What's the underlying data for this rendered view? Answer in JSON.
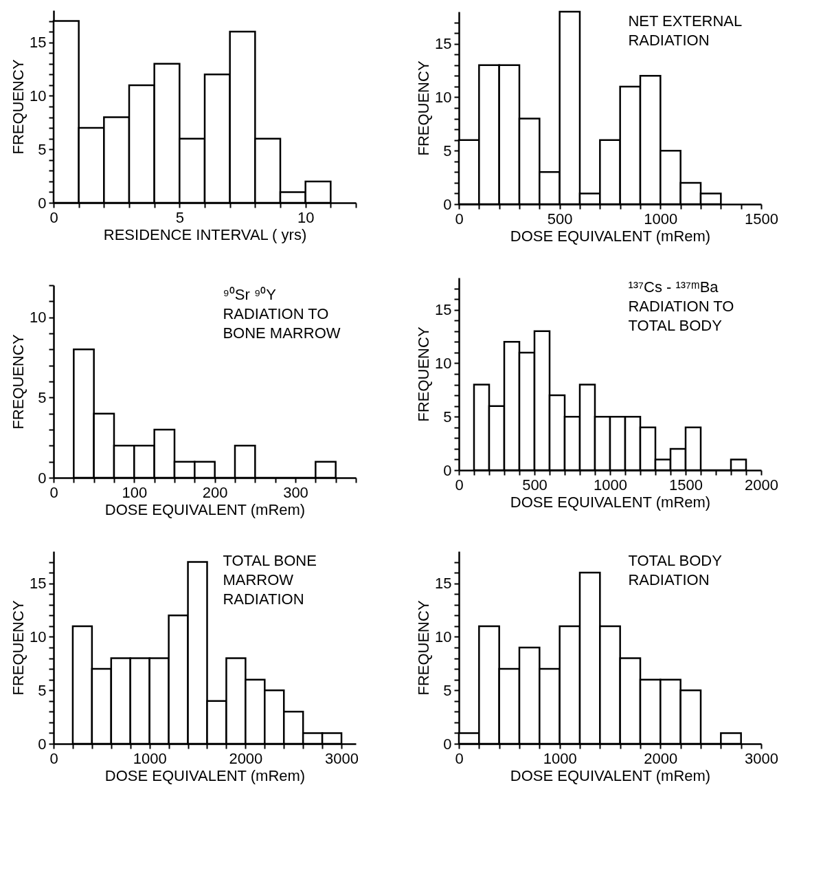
{
  "chart_data": [
    {
      "type": "histogram",
      "xlabel": "RESIDENCE INTERVAL ( yrs)",
      "ylabel": "FREQUENCY",
      "bins": [
        0,
        1,
        2,
        3,
        4,
        5,
        6,
        7,
        8,
        9,
        10,
        11
      ],
      "values": [
        17,
        7,
        8,
        11,
        13,
        6,
        12,
        16,
        6,
        1,
        2
      ],
      "xlim": [
        0,
        12
      ],
      "ylim": [
        0,
        18
      ],
      "xticks": [
        0,
        {
          "value": 1,
          "label": null
        },
        {
          "value": 2,
          "label": null
        },
        {
          "value": 3,
          "label": null
        },
        {
          "value": 4,
          "label": null
        },
        5,
        {
          "value": 6,
          "label": null
        },
        {
          "value": 7,
          "label": null
        },
        {
          "value": 8,
          "label": null
        },
        {
          "value": 9,
          "label": null
        },
        10,
        {
          "value": 11,
          "label": null
        },
        {
          "value": 12,
          "label": null
        }
      ],
      "yticks": [
        0,
        {
          "value": 1,
          "label": null
        },
        {
          "value": 2,
          "label": null
        },
        {
          "value": 3,
          "label": null
        },
        {
          "value": 4,
          "label": null
        },
        5,
        {
          "value": 6,
          "label": null
        },
        {
          "value": 7,
          "label": null
        },
        {
          "value": 8,
          "label": null
        },
        {
          "value": 9,
          "label": null
        },
        10,
        {
          "value": 11,
          "label": null
        },
        {
          "value": 12,
          "label": null
        },
        {
          "value": 13,
          "label": null
        },
        {
          "value": 14,
          "label": null
        },
        15,
        {
          "value": 16,
          "label": null
        },
        {
          "value": 17,
          "label": null
        }
      ]
    },
    {
      "type": "histogram",
      "xlabel": "DOSE EQUIVALENT (mRem)",
      "ylabel": "FREQUENCY",
      "annotations": [
        "NET EXTERNAL",
        "RADIATION"
      ],
      "bins": [
        0,
        100,
        200,
        300,
        400,
        500,
        600,
        700,
        800,
        900,
        1000,
        1100,
        1200,
        1300
      ],
      "values": [
        6,
        13,
        13,
        8,
        3,
        18,
        1,
        6,
        11,
        12,
        5,
        2,
        1
      ],
      "xlim": [
        0,
        1500
      ],
      "ylim": [
        0,
        18
      ],
      "xticks": [
        0,
        {
          "value": 100,
          "label": null
        },
        {
          "value": 200,
          "label": null
        },
        {
          "value": 300,
          "label": null
        },
        {
          "value": 400,
          "label": null
        },
        500,
        {
          "value": 600,
          "label": null
        },
        {
          "value": 700,
          "label": null
        },
        {
          "value": 800,
          "label": null
        },
        {
          "value": 900,
          "label": null
        },
        1000,
        {
          "value": 1100,
          "label": null
        },
        {
          "value": 1200,
          "label": null
        },
        {
          "value": 1300,
          "label": null
        },
        {
          "value": 1400,
          "label": null
        },
        1500
      ],
      "yticks": [
        0,
        {
          "value": 1,
          "label": null
        },
        {
          "value": 2,
          "label": null
        },
        {
          "value": 3,
          "label": null
        },
        {
          "value": 4,
          "label": null
        },
        5,
        {
          "value": 6,
          "label": null
        },
        {
          "value": 7,
          "label": null
        },
        {
          "value": 8,
          "label": null
        },
        {
          "value": 9,
          "label": null
        },
        10,
        {
          "value": 11,
          "label": null
        },
        {
          "value": 12,
          "label": null
        },
        {
          "value": 13,
          "label": null
        },
        {
          "value": 14,
          "label": null
        },
        15,
        {
          "value": 16,
          "label": null
        },
        {
          "value": 17,
          "label": null
        }
      ]
    },
    {
      "type": "histogram",
      "xlabel": "DOSE EQUIVALENT (mRem)",
      "ylabel": "FREQUENCY",
      "annotations": [
        "⁹⁰Sr ⁹⁰Y",
        "RADIATION TO",
        "BONE MARROW"
      ],
      "bins": [
        25,
        50,
        75,
        100,
        125,
        150,
        175,
        200,
        225,
        250,
        275,
        300,
        325,
        350
      ],
      "values": [
        8,
        4,
        2,
        2,
        3,
        1,
        1,
        0,
        2,
        0,
        0,
        0,
        1
      ],
      "xlim": [
        0,
        375
      ],
      "ylim": [
        0,
        12
      ],
      "xticks": [
        0,
        {
          "value": 25,
          "label": null
        },
        {
          "value": 50,
          "label": null
        },
        {
          "value": 75,
          "label": null
        },
        100,
        {
          "value": 125,
          "label": null
        },
        {
          "value": 150,
          "label": null
        },
        {
          "value": 175,
          "label": null
        },
        200,
        {
          "value": 225,
          "label": null
        },
        {
          "value": 250,
          "label": null
        },
        {
          "value": 275,
          "label": null
        },
        300,
        {
          "value": 325,
          "label": null
        },
        {
          "value": 350,
          "label": null
        },
        {
          "value": 375,
          "label": null
        }
      ],
      "yticks": [
        0,
        {
          "value": 1,
          "label": null
        },
        {
          "value": 2,
          "label": null
        },
        {
          "value": 3,
          "label": null
        },
        {
          "value": 4,
          "label": null
        },
        5,
        {
          "value": 6,
          "label": null
        },
        {
          "value": 7,
          "label": null
        },
        {
          "value": 8,
          "label": null
        },
        {
          "value": 9,
          "label": null
        },
        10,
        {
          "value": 11,
          "label": null
        },
        {
          "value": 12,
          "label": null
        }
      ]
    },
    {
      "type": "histogram",
      "xlabel": "DOSE EQUIVALENT (mRem)",
      "ylabel": "FREQUENCY",
      "annotations": [
        "¹³⁷Cs - ¹³⁷ᵐBa",
        "RADIATION TO",
        "TOTAL BODY"
      ],
      "bins": [
        100,
        200,
        300,
        400,
        500,
        600,
        700,
        800,
        900,
        1000,
        1100,
        1200,
        1300,
        1400,
        1500,
        1600,
        1700,
        1800,
        1900
      ],
      "values": [
        8,
        6,
        12,
        11,
        13,
        7,
        5,
        8,
        5,
        5,
        5,
        4,
        1,
        2,
        4,
        0,
        0,
        1
      ],
      "xlim": [
        0,
        2000
      ],
      "ylim": [
        0,
        18
      ],
      "xticks": [
        0,
        {
          "value": 100,
          "label": null
        },
        {
          "value": 200,
          "label": null
        },
        {
          "value": 300,
          "label": null
        },
        {
          "value": 400,
          "label": null
        },
        500,
        {
          "value": 600,
          "label": null
        },
        {
          "value": 700,
          "label": null
        },
        {
          "value": 800,
          "label": null
        },
        {
          "value": 900,
          "label": null
        },
        1000,
        {
          "value": 1100,
          "label": null
        },
        {
          "value": 1200,
          "label": null
        },
        {
          "value": 1300,
          "label": null
        },
        {
          "value": 1400,
          "label": null
        },
        1500,
        {
          "value": 1600,
          "label": null
        },
        {
          "value": 1700,
          "label": null
        },
        {
          "value": 1800,
          "label": null
        },
        {
          "value": 1900,
          "label": null
        },
        2000
      ],
      "yticks": [
        0,
        {
          "value": 1,
          "label": null
        },
        {
          "value": 2,
          "label": null
        },
        {
          "value": 3,
          "label": null
        },
        {
          "value": 4,
          "label": null
        },
        5,
        {
          "value": 6,
          "label": null
        },
        {
          "value": 7,
          "label": null
        },
        {
          "value": 8,
          "label": null
        },
        {
          "value": 9,
          "label": null
        },
        10,
        {
          "value": 11,
          "label": null
        },
        {
          "value": 12,
          "label": null
        },
        {
          "value": 13,
          "label": null
        },
        {
          "value": 14,
          "label": null
        },
        15,
        {
          "value": 16,
          "label": null
        },
        {
          "value": 17,
          "label": null
        }
      ]
    },
    {
      "type": "histogram",
      "xlabel": "DOSE EQUIVALENT (mRem)",
      "ylabel": "FREQUENCY",
      "annotations": [
        "TOTAL BONE",
        "MARROW",
        "RADIATION"
      ],
      "bins": [
        200,
        400,
        600,
        800,
        1000,
        1200,
        1400,
        1600,
        1800,
        2000,
        2200,
        2400,
        2600,
        2800,
        3000
      ],
      "values": [
        11,
        7,
        8,
        8,
        8,
        12,
        17,
        4,
        8,
        6,
        5,
        3,
        1,
        1
      ],
      "xlim": [
        0,
        3150
      ],
      "ylim": [
        0,
        18
      ],
      "xticks": [
        0,
        {
          "value": 200,
          "label": null
        },
        {
          "value": 400,
          "label": null
        },
        {
          "value": 600,
          "label": null
        },
        {
          "value": 800,
          "label": null
        },
        1000,
        {
          "value": 1200,
          "label": null
        },
        {
          "value": 1400,
          "label": null
        },
        {
          "value": 1600,
          "label": null
        },
        {
          "value": 1800,
          "label": null
        },
        2000,
        {
          "value": 2200,
          "label": null
        },
        {
          "value": 2400,
          "label": null
        },
        {
          "value": 2600,
          "label": null
        },
        {
          "value": 2800,
          "label": null
        },
        3000
      ],
      "yticks": [
        0,
        {
          "value": 1,
          "label": null
        },
        {
          "value": 2,
          "label": null
        },
        {
          "value": 3,
          "label": null
        },
        {
          "value": 4,
          "label": null
        },
        5,
        {
          "value": 6,
          "label": null
        },
        {
          "value": 7,
          "label": null
        },
        {
          "value": 8,
          "label": null
        },
        {
          "value": 9,
          "label": null
        },
        10,
        {
          "value": 11,
          "label": null
        },
        {
          "value": 12,
          "label": null
        },
        {
          "value": 13,
          "label": null
        },
        {
          "value": 14,
          "label": null
        },
        15,
        {
          "value": 16,
          "label": null
        },
        {
          "value": 17,
          "label": null
        }
      ]
    },
    {
      "type": "histogram",
      "xlabel": "DOSE EQUIVALENT (mRem)",
      "ylabel": "FREQUENCY",
      "annotations": [
        "TOTAL BODY",
        "RADIATION"
      ],
      "bins": [
        0,
        200,
        400,
        600,
        800,
        1000,
        1200,
        1400,
        1600,
        1800,
        2000,
        2200,
        2400,
        2600,
        2800
      ],
      "values": [
        1,
        11,
        7,
        9,
        7,
        11,
        16,
        11,
        8,
        6,
        6,
        5,
        0,
        1
      ],
      "xlim": [
        0,
        3000
      ],
      "ylim": [
        0,
        18
      ],
      "xticks": [
        0,
        {
          "value": 200,
          "label": null
        },
        {
          "value": 400,
          "label": null
        },
        {
          "value": 600,
          "label": null
        },
        {
          "value": 800,
          "label": null
        },
        1000,
        {
          "value": 1200,
          "label": null
        },
        {
          "value": 1400,
          "label": null
        },
        {
          "value": 1600,
          "label": null
        },
        {
          "value": 1800,
          "label": null
        },
        2000,
        {
          "value": 2200,
          "label": null
        },
        {
          "value": 2400,
          "label": null
        },
        {
          "value": 2600,
          "label": null
        },
        {
          "value": 2800,
          "label": null
        },
        3000
      ],
      "yticks": [
        0,
        {
          "value": 1,
          "label": null
        },
        {
          "value": 2,
          "label": null
        },
        {
          "value": 3,
          "label": null
        },
        {
          "value": 4,
          "label": null
        },
        5,
        {
          "value": 6,
          "label": null
        },
        {
          "value": 7,
          "label": null
        },
        {
          "value": 8,
          "label": null
        },
        {
          "value": 9,
          "label": null
        },
        10,
        {
          "value": 11,
          "label": null
        },
        {
          "value": 12,
          "label": null
        },
        {
          "value": 13,
          "label": null
        },
        {
          "value": 14,
          "label": null
        },
        15,
        {
          "value": 16,
          "label": null
        },
        {
          "value": 17,
          "label": null
        }
      ]
    }
  ]
}
